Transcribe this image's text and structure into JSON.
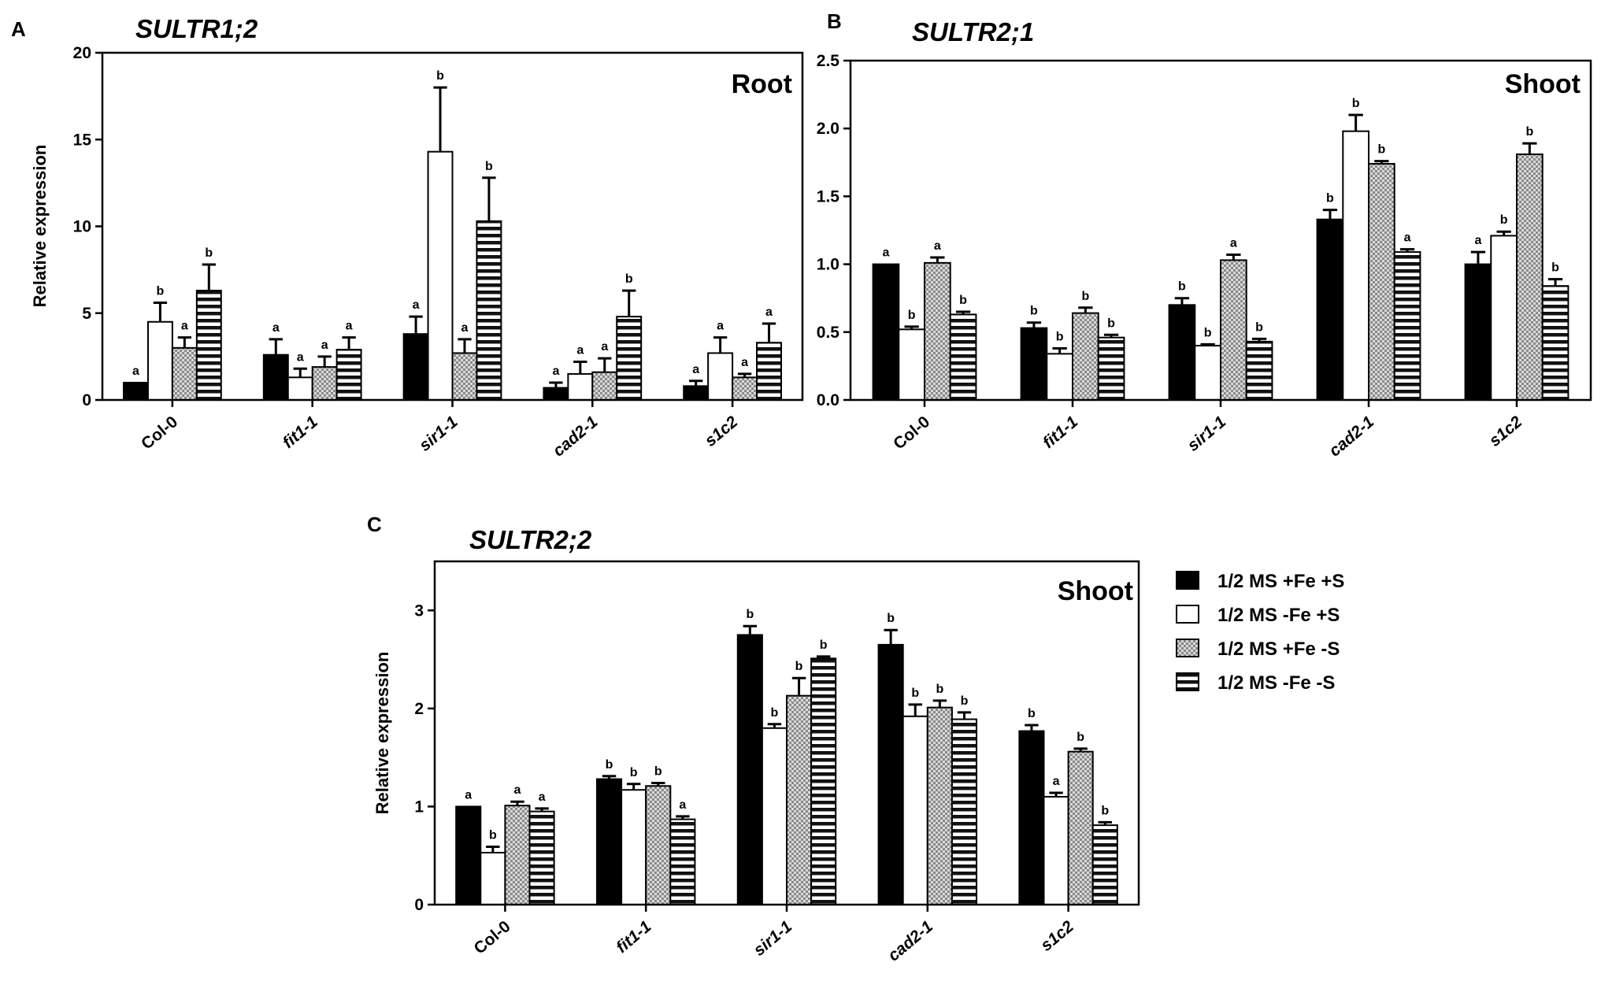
{
  "legend": {
    "items": [
      {
        "label": "1/2 MS +Fe +S",
        "pattern": "black"
      },
      {
        "label": "1/2 MS -Fe +S",
        "pattern": "white"
      },
      {
        "label": "1/2 MS +Fe -S",
        "pattern": "checker"
      },
      {
        "label": "1/2 MS -Fe -S",
        "pattern": "hstripe"
      }
    ]
  },
  "chart_data": [
    {
      "panel": "A",
      "type": "bar",
      "title": "SULTR1;2",
      "tissue": "Root",
      "ylabel": "Relative expression",
      "ylim": [
        0,
        20
      ],
      "yticks": [
        0,
        5,
        10,
        15,
        20
      ],
      "categories": [
        "Col-0",
        "fit1-1",
        "sir1-1",
        "cad2-1",
        "s1c2"
      ],
      "italic_categories": [
        "fit1-1",
        "sir1-1",
        "cad2-1",
        "s1c2"
      ],
      "series": [
        {
          "name": "1/2 MS +Fe +S",
          "values": [
            1.0,
            2.6,
            3.8,
            0.7,
            0.8
          ],
          "errors": [
            0.0,
            0.9,
            1.0,
            0.3,
            0.3
          ],
          "letters": [
            "a",
            "a",
            "a",
            "a",
            "a"
          ]
        },
        {
          "name": "1/2 MS -Fe +S",
          "values": [
            4.5,
            1.3,
            14.3,
            1.5,
            2.7
          ],
          "errors": [
            1.1,
            0.5,
            3.7,
            0.7,
            0.9
          ],
          "letters": [
            "b",
            "a",
            "b",
            "a",
            "a"
          ]
        },
        {
          "name": "1/2 MS +Fe -S",
          "values": [
            3.0,
            1.9,
            2.7,
            1.6,
            1.3
          ],
          "errors": [
            0.6,
            0.6,
            0.8,
            0.8,
            0.2
          ],
          "letters": [
            "a",
            "a",
            "a",
            "a",
            "a"
          ]
        },
        {
          "name": "1/2 MS -Fe -S",
          "values": [
            6.3,
            2.9,
            10.3,
            4.8,
            3.3
          ],
          "errors": [
            1.5,
            0.7,
            2.5,
            1.5,
            1.1
          ],
          "letters": [
            "b",
            "a",
            "b",
            "b",
            "a"
          ]
        }
      ]
    },
    {
      "panel": "B",
      "type": "bar",
      "title": "SULTR2;1",
      "tissue": "Shoot",
      "ylabel": "",
      "ylim": [
        0,
        2.5
      ],
      "yticks": [
        "0.0",
        "0.5",
        "1.0",
        "1.5",
        "2.0",
        "2.5"
      ],
      "categories": [
        "Col-0",
        "fit1-1",
        "sir1-1",
        "cad2-1",
        "s1c2"
      ],
      "italic_categories": [
        "fit1-1",
        "sir1-1",
        "cad2-1",
        "s1c2"
      ],
      "series": [
        {
          "name": "1/2 MS +Fe +S",
          "values": [
            1.0,
            0.53,
            0.7,
            1.33,
            1.0
          ],
          "errors": [
            0.0,
            0.04,
            0.05,
            0.07,
            0.09
          ],
          "letters": [
            "a",
            "b",
            "b",
            "b",
            "a"
          ]
        },
        {
          "name": "1/2 MS -Fe +S",
          "values": [
            0.52,
            0.34,
            0.4,
            1.98,
            1.21
          ],
          "errors": [
            0.02,
            0.04,
            0.01,
            0.12,
            0.03
          ],
          "letters": [
            "b",
            "b",
            "b",
            "b",
            "b"
          ]
        },
        {
          "name": "1/2 MS +Fe -S",
          "values": [
            1.01,
            0.64,
            1.03,
            1.74,
            1.81
          ],
          "errors": [
            0.04,
            0.04,
            0.04,
            0.02,
            0.08
          ],
          "letters": [
            "a",
            "b",
            "a",
            "b",
            "b"
          ]
        },
        {
          "name": "1/2 MS -Fe -S",
          "values": [
            0.63,
            0.46,
            0.43,
            1.09,
            0.84
          ],
          "errors": [
            0.02,
            0.02,
            0.02,
            0.02,
            0.05
          ],
          "letters": [
            "b",
            "b",
            "b",
            "a",
            "b"
          ]
        }
      ]
    },
    {
      "panel": "C",
      "type": "bar",
      "title": "SULTR2;2",
      "tissue": "Shoot",
      "ylabel": "Relative expression",
      "ylim": [
        0,
        3.5
      ],
      "yticks": [
        0,
        1,
        2,
        3
      ],
      "categories": [
        "Col-0",
        "fit1-1",
        "sir1-1",
        "cad2-1",
        "s1c2"
      ],
      "italic_categories": [
        "fit1-1",
        "sir1-1",
        "cad2-1",
        "s1c2"
      ],
      "series": [
        {
          "name": "1/2 MS +Fe +S",
          "values": [
            1.0,
            1.28,
            2.75,
            2.65,
            1.77
          ],
          "errors": [
            0.0,
            0.03,
            0.09,
            0.15,
            0.06
          ],
          "letters": [
            "a",
            "b",
            "b",
            "b",
            "b"
          ]
        },
        {
          "name": "1/2 MS -Fe +S",
          "values": [
            0.53,
            1.17,
            1.8,
            1.92,
            1.1
          ],
          "errors": [
            0.06,
            0.06,
            0.04,
            0.12,
            0.04
          ],
          "letters": [
            "b",
            "b",
            "b",
            "b",
            "a"
          ]
        },
        {
          "name": "1/2 MS +Fe -S",
          "values": [
            1.01,
            1.21,
            2.13,
            2.01,
            1.56
          ],
          "errors": [
            0.04,
            0.03,
            0.18,
            0.07,
            0.03
          ],
          "letters": [
            "a",
            "b",
            "b",
            "b",
            "b"
          ]
        },
        {
          "name": "1/2 MS -Fe -S",
          "values": [
            0.95,
            0.87,
            2.51,
            1.89,
            0.81
          ],
          "errors": [
            0.03,
            0.03,
            0.02,
            0.07,
            0.03
          ],
          "letters": [
            "a",
            "a",
            "b",
            "b",
            "b"
          ]
        }
      ]
    }
  ]
}
